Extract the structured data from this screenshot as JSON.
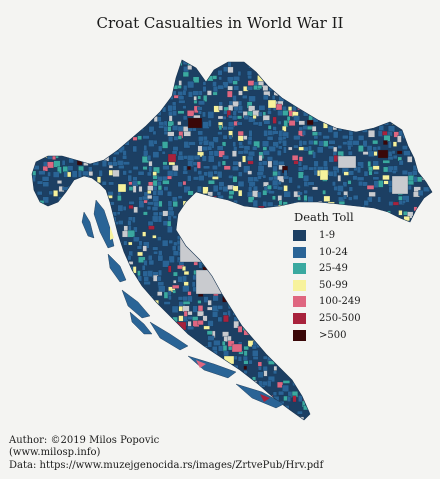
{
  "title": "Croat Casualties in World War II",
  "legend": {
    "title": "Death Toll",
    "items": [
      {
        "label": "1-9",
        "color": "#1c3f63"
      },
      {
        "label": "10-24",
        "color": "#2a6496"
      },
      {
        "label": "25-49",
        "color": "#3aa9a0"
      },
      {
        "label": "50-99",
        "color": "#f7f29c"
      },
      {
        "label": "100-249",
        "color": "#df6680"
      },
      {
        "label": "250-500",
        "color": "#a8223c"
      },
      {
        "label": ">500",
        "color": "#3a0708"
      }
    ]
  },
  "no_data_color": "#c9cbcf",
  "credits": {
    "author": "Author: ©2019 Milos Popovic",
    "site": "(www.milosp.info)",
    "data": "Data: https://www.muzejgenocida.rs/images/ZrtvePub/Hrv.pdf"
  }
}
